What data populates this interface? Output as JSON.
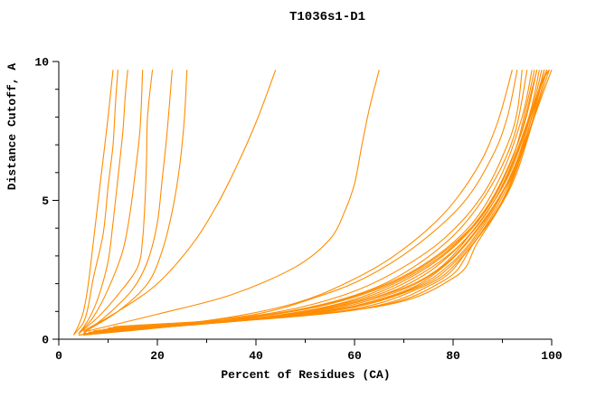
{
  "page": {
    "background": "#ffffff"
  },
  "chart_data": {
    "type": "line",
    "title": "T1036s1-D1",
    "xlabel": "Percent of Residues (CA)",
    "ylabel": "Distance Cutoff, A",
    "xlim": [
      0,
      100
    ],
    "ylim": [
      0,
      10
    ],
    "x_ticks": [
      0,
      20,
      40,
      60,
      80,
      100
    ],
    "x_minor_step": 10,
    "y_ticks": [
      0,
      5,
      10
    ],
    "y_minor_step": 1,
    "line_color": "#ff8c00",
    "axis_color": "#000000",
    "legend": "none",
    "grid": false,
    "series": [
      [
        [
          3,
          0.15
        ],
        [
          4,
          0.5
        ],
        [
          5,
          1.0
        ],
        [
          6,
          2.0
        ],
        [
          7,
          3.5
        ],
        [
          8,
          5.0
        ],
        [
          9,
          6.5
        ],
        [
          10,
          8.0
        ],
        [
          11,
          9.7
        ]
      ],
      [
        [
          3,
          0.15
        ],
        [
          5,
          0.6
        ],
        [
          6,
          1.2
        ],
        [
          7,
          2.2
        ],
        [
          9,
          3.8
        ],
        [
          10,
          5.5
        ],
        [
          11,
          7.0
        ],
        [
          11.5,
          8.5
        ],
        [
          12,
          9.7
        ]
      ],
      [
        [
          4,
          0.2
        ],
        [
          6,
          0.7
        ],
        [
          8,
          1.5
        ],
        [
          10,
          2.8
        ],
        [
          11,
          4.2
        ],
        [
          12,
          5.8
        ],
        [
          13,
          7.5
        ],
        [
          13.5,
          8.8
        ],
        [
          14,
          9.7
        ]
      ],
      [
        [
          4,
          0.2
        ],
        [
          7,
          0.8
        ],
        [
          10,
          1.8
        ],
        [
          13,
          3.2
        ],
        [
          14.5,
          4.6
        ],
        [
          15.5,
          6.0
        ],
        [
          16.5,
          7.6
        ],
        [
          17,
          9.7
        ]
      ],
      [
        [
          4,
          0.2
        ],
        [
          8,
          0.8
        ],
        [
          12,
          1.6
        ],
        [
          16,
          2.6
        ],
        [
          17,
          3.6
        ],
        [
          17.5,
          5.0
        ],
        [
          17.8,
          6.5
        ],
        [
          18,
          8.0
        ],
        [
          19,
          9.7
        ]
      ],
      [
        [
          5,
          0.2
        ],
        [
          10,
          0.9
        ],
        [
          15,
          1.8
        ],
        [
          18,
          2.8
        ],
        [
          20,
          4.2
        ],
        [
          21,
          5.8
        ],
        [
          22,
          7.5
        ],
        [
          23,
          9.7
        ]
      ],
      [
        [
          5,
          0.25
        ],
        [
          12,
          1.0
        ],
        [
          18,
          2.0
        ],
        [
          21,
          3.2
        ],
        [
          23,
          4.6
        ],
        [
          24.5,
          6.2
        ],
        [
          25.5,
          8.0
        ],
        [
          26,
          9.7
        ]
      ],
      [
        [
          5,
          0.3
        ],
        [
          12,
          1.0
        ],
        [
          20,
          2.0
        ],
        [
          27,
          3.4
        ],
        [
          32,
          4.8
        ],
        [
          36,
          6.2
        ],
        [
          40,
          7.8
        ],
        [
          44,
          9.7
        ]
      ],
      [
        [
          6,
          0.3
        ],
        [
          20,
          0.9
        ],
        [
          35,
          1.6
        ],
        [
          48,
          2.6
        ],
        [
          55,
          3.6
        ],
        [
          58,
          4.6
        ],
        [
          60,
          5.6
        ],
        [
          61.5,
          7.0
        ],
        [
          63,
          8.3
        ],
        [
          65,
          9.7
        ]
      ],
      [
        [
          4,
          0.15
        ],
        [
          20,
          0.45
        ],
        [
          35,
          0.8
        ],
        [
          48,
          1.3
        ],
        [
          58,
          2.0
        ],
        [
          68,
          3.0
        ],
        [
          78,
          4.5
        ],
        [
          85,
          6.2
        ],
        [
          89,
          7.8
        ],
        [
          92,
          9.7
        ]
      ],
      [
        [
          4,
          0.15
        ],
        [
          22,
          0.5
        ],
        [
          40,
          0.9
        ],
        [
          52,
          1.5
        ],
        [
          62,
          2.2
        ],
        [
          72,
          3.3
        ],
        [
          82,
          4.9
        ],
        [
          88,
          6.6
        ],
        [
          91,
          8.0
        ],
        [
          93,
          9.7
        ]
      ],
      [
        [
          5,
          0.15
        ],
        [
          25,
          0.5
        ],
        [
          45,
          1.0
        ],
        [
          58,
          1.6
        ],
        [
          68,
          2.4
        ],
        [
          78,
          3.6
        ],
        [
          86,
          5.2
        ],
        [
          91,
          7.0
        ],
        [
          93,
          8.2
        ],
        [
          94,
          9.7
        ]
      ],
      [
        [
          5,
          0.2
        ],
        [
          28,
          0.55
        ],
        [
          48,
          1.05
        ],
        [
          62,
          1.7
        ],
        [
          72,
          2.6
        ],
        [
          81,
          3.9
        ],
        [
          88,
          5.6
        ],
        [
          92.5,
          7.4
        ],
        [
          95,
          9.7
        ]
      ],
      [
        [
          5,
          0.2
        ],
        [
          30,
          0.6
        ],
        [
          50,
          1.1
        ],
        [
          64,
          1.8
        ],
        [
          75,
          2.8
        ],
        [
          84,
          4.2
        ],
        [
          90,
          6.0
        ],
        [
          94,
          8.0
        ],
        [
          96,
          9.7
        ]
      ],
      [
        [
          6,
          0.2
        ],
        [
          32,
          0.62
        ],
        [
          52,
          1.15
        ],
        [
          66,
          1.9
        ],
        [
          77,
          3.0
        ],
        [
          86,
          4.5
        ],
        [
          92,
          6.5
        ],
        [
          95,
          8.5
        ],
        [
          96.5,
          9.7
        ]
      ],
      [
        [
          6,
          0.22
        ],
        [
          35,
          0.65
        ],
        [
          55,
          1.2
        ],
        [
          68,
          2.0
        ],
        [
          79,
          3.2
        ],
        [
          87,
          4.8
        ],
        [
          93,
          7.0
        ],
        [
          96,
          9.0
        ],
        [
          97,
          9.7
        ]
      ],
      [
        [
          6,
          0.25
        ],
        [
          38,
          0.7
        ],
        [
          58,
          1.3
        ],
        [
          70,
          2.1
        ],
        [
          80,
          3.3
        ],
        [
          88,
          5.0
        ],
        [
          94,
          7.5
        ],
        [
          97,
          9.7
        ]
      ],
      [
        [
          7,
          0.25
        ],
        [
          40,
          0.72
        ],
        [
          60,
          1.35
        ],
        [
          72,
          2.2
        ],
        [
          82,
          3.5
        ],
        [
          89,
          5.2
        ],
        [
          95,
          7.8
        ],
        [
          97.5,
          9.7
        ]
      ],
      [
        [
          7,
          0.28
        ],
        [
          42,
          0.75
        ],
        [
          62,
          1.4
        ],
        [
          74,
          2.3
        ],
        [
          83,
          3.7
        ],
        [
          90,
          5.5
        ],
        [
          95.5,
          8.0
        ],
        [
          98,
          9.7
        ]
      ],
      [
        [
          7,
          0.3
        ],
        [
          44,
          0.8
        ],
        [
          64,
          1.5
        ],
        [
          76,
          2.4
        ],
        [
          84,
          3.9
        ],
        [
          91,
          5.8
        ],
        [
          96,
          8.2
        ],
        [
          98.5,
          9.7
        ]
      ],
      [
        [
          8,
          0.3
        ],
        [
          46,
          0.82
        ],
        [
          66,
          1.55
        ],
        [
          77,
          2.5
        ],
        [
          85,
          4.0
        ],
        [
          92,
          6.0
        ],
        [
          96.5,
          8.5
        ],
        [
          99,
          9.7
        ]
      ],
      [
        [
          8,
          0.3
        ],
        [
          48,
          0.85
        ],
        [
          68,
          1.6
        ],
        [
          78,
          2.6
        ],
        [
          86,
          4.2
        ],
        [
          93,
          6.3
        ],
        [
          97,
          8.7
        ],
        [
          99,
          9.7
        ]
      ],
      [
        [
          8,
          0.32
        ],
        [
          50,
          0.9
        ],
        [
          70,
          1.7
        ],
        [
          80,
          2.8
        ],
        [
          87,
          4.4
        ],
        [
          93.5,
          6.6
        ],
        [
          97.5,
          9.0
        ],
        [
          99.5,
          9.7
        ]
      ],
      [
        [
          9,
          0.35
        ],
        [
          52,
          0.92
        ],
        [
          72,
          1.8
        ],
        [
          81,
          2.9
        ],
        [
          88,
          4.6
        ],
        [
          94,
          6.9
        ],
        [
          98,
          9.2
        ],
        [
          99.5,
          9.7
        ]
      ],
      [
        [
          9,
          0.35
        ],
        [
          55,
          0.95
        ],
        [
          74,
          1.9
        ],
        [
          82,
          3.0
        ],
        [
          89,
          4.8
        ],
        [
          95,
          7.2
        ],
        [
          98.5,
          9.7
        ]
      ],
      [
        [
          10,
          0.4
        ],
        [
          58,
          1.0
        ],
        [
          76,
          2.0
        ],
        [
          83,
          3.2
        ],
        [
          90,
          5.0
        ],
        [
          95.5,
          7.5
        ],
        [
          99,
          9.7
        ]
      ],
      [
        [
          10,
          0.4
        ],
        [
          60,
          1.05
        ],
        [
          78,
          2.1
        ],
        [
          84,
          3.4
        ],
        [
          91,
          5.3
        ],
        [
          96,
          7.8
        ],
        [
          99.5,
          9.7
        ]
      ],
      [
        [
          11,
          0.45
        ],
        [
          62,
          1.1
        ],
        [
          80,
          2.2
        ],
        [
          85,
          3.5
        ],
        [
          92,
          5.6
        ],
        [
          96.5,
          8.0
        ],
        [
          100,
          9.7
        ]
      ]
    ]
  }
}
